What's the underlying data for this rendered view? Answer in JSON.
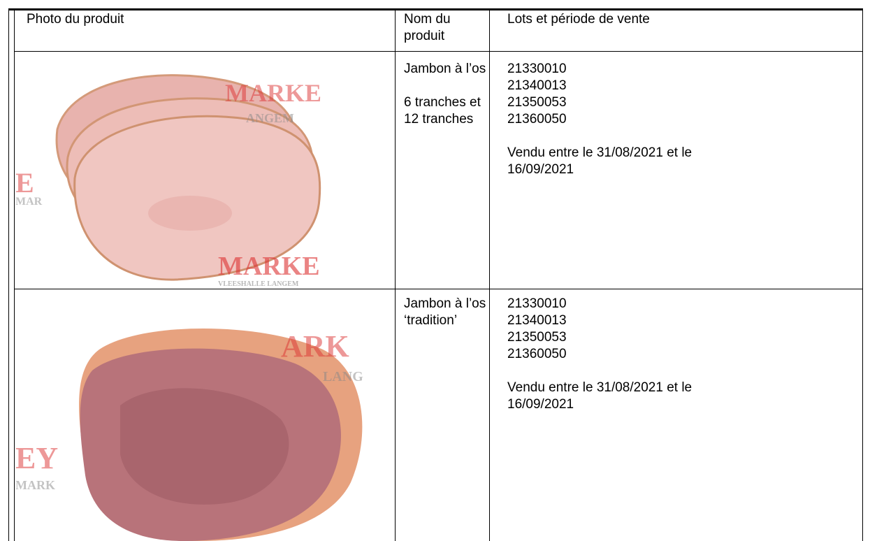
{
  "table": {
    "header": [
      "Photo du produit",
      "Nom du produit",
      "Lots et période de vente"
    ],
    "rows": [
      {
        "photo_watermarks": [
          "MARKE",
          "ANGEM",
          "E",
          "MAR",
          "MARKE",
          "VLEESHALLE LANGEM"
        ],
        "name": [
          "Jambon à l’os",
          "6 tranches et 12 tranches"
        ],
        "lots": [
          "21330010",
          "21340013",
          "21350053",
          "21360050"
        ],
        "sale": "Vendu entre le 31/08/2021 et le 16/09/2021"
      },
      {
        "photo_watermarks": [
          "ARK",
          "LANG",
          "EY",
          "MARK"
        ],
        "name": [
          "Jambon à l’os ‘tradition’"
        ],
        "lots": [
          "21330010",
          "21340013",
          "21350053",
          "21360050"
        ],
        "sale": "Vendu entre le 31/08/2021 et le 16/09/2021"
      }
    ]
  }
}
